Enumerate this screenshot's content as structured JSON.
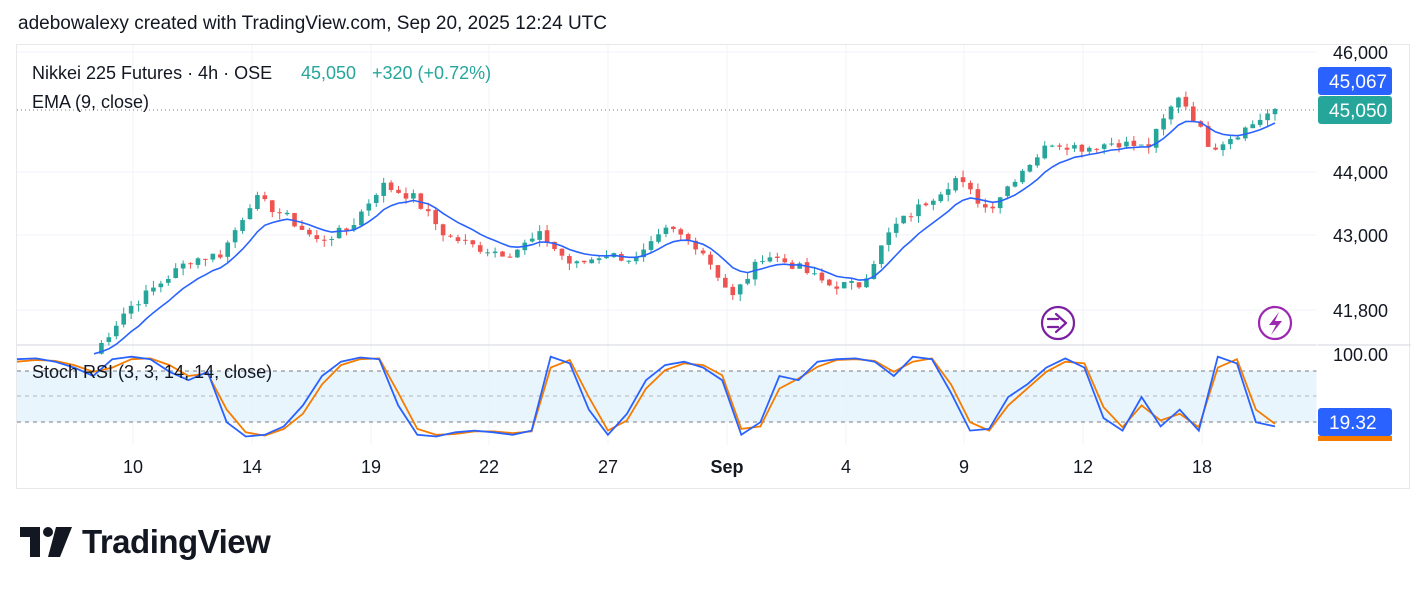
{
  "header": {
    "text": "adebowalexy created with TradingView.com, Sep 20, 2025 12:24 UTC"
  },
  "legend": {
    "symbol": "Nikkei 225 Futures · 4h · OSE",
    "last": "45,050",
    "change": "+320 (+0.72%)",
    "ema": "EMA (9, close)",
    "stoch": "Stoch RSI (3, 3, 14, 14, close)"
  },
  "price_tags": {
    "ema_value": "45,067",
    "last_value": "45,050",
    "stoch_value": "19.32"
  },
  "logo": {
    "word": "TradingView"
  },
  "colors": {
    "up": "#26a69a",
    "down": "#ef5350",
    "ema": "#2962ff",
    "stoch_k": "#2962ff",
    "stoch_d": "#f57c00",
    "stoch_band": "#e3f2fd",
    "event_icon": "#7b1fa2"
  },
  "icons": [
    "dividend-arrow-icon",
    "lightning-icon"
  ],
  "chart_data": [
    {
      "type": "candlestick",
      "title": "Nikkei 225 Futures · 4h · OSE",
      "y_tick_labels": [
        "46,000",
        "44,000",
        "43,000",
        "41,800"
      ],
      "y_ticks": [
        46000,
        44000,
        43000,
        41800
      ],
      "ylim": [
        41300,
        46200
      ],
      "x_tick_labels": [
        "10",
        "14",
        "19",
        "22",
        "27",
        "Sep",
        "4",
        "9",
        "12",
        "18"
      ],
      "grid": true,
      "series": [
        {
          "name": "EMA (9, close)",
          "role": "ema"
        }
      ],
      "ohlc_anchor_closes": [
        41100,
        41800,
        42200,
        42600,
        42700,
        43600,
        43300,
        42900,
        43100,
        43800,
        43600,
        43000,
        42800,
        42700,
        43000,
        42500,
        42700,
        42600,
        43100,
        42800,
        42000,
        42700,
        42500,
        42200,
        42200,
        43100,
        43500,
        43900,
        43400,
        44000,
        44500,
        44400,
        44500,
        44400,
        45300,
        44400,
        44700,
        45050
      ],
      "last": 45050,
      "ema_last": 45067
    },
    {
      "type": "line",
      "title": "Stoch RSI (3, 3, 14, 14, close)",
      "y_tick_labels": [
        "100.00"
      ],
      "ylim": [
        0,
        100
      ],
      "bands": [
        80,
        20
      ],
      "series": [
        {
          "name": "K",
          "values": [
            95,
            96,
            92,
            85,
            75,
            95,
            98,
            95,
            80,
            70,
            80,
            20,
            3,
            5,
            15,
            40,
            75,
            92,
            97,
            95,
            40,
            5,
            3,
            8,
            10,
            8,
            5,
            10,
            98,
            90,
            35,
            5,
            30,
            70,
            88,
            92,
            85,
            70,
            5,
            20,
            75,
            70,
            92,
            95,
            96,
            92,
            75,
            98,
            95,
            55,
            10,
            12,
            50,
            65,
            85,
            96,
            85,
            25,
            10,
            50,
            15,
            35,
            10,
            98,
            90,
            20,
            15
          ]
        },
        {
          "name": "D",
          "values": [
            92,
            94,
            93,
            88,
            80,
            85,
            95,
            96,
            88,
            75,
            78,
            35,
            8,
            4,
            12,
            30,
            65,
            88,
            95,
            96,
            55,
            12,
            5,
            6,
            9,
            9,
            7,
            9,
            85,
            94,
            50,
            10,
            22,
            60,
            82,
            90,
            88,
            76,
            12,
            15,
            60,
            72,
            86,
            94,
            95,
            93,
            80,
            92,
            96,
            65,
            20,
            10,
            40,
            60,
            80,
            92,
            90,
            38,
            14,
            40,
            22,
            30,
            14,
            85,
            95,
            35,
            18
          ]
        }
      ],
      "last": 19.32
    }
  ]
}
